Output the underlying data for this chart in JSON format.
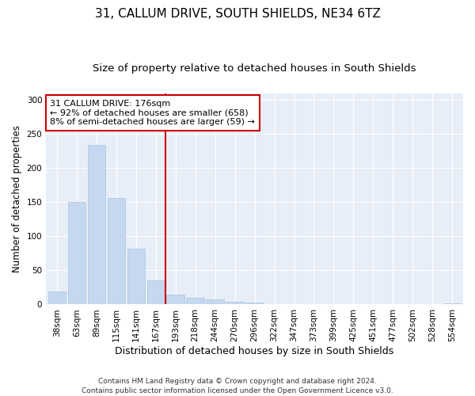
{
  "title": "31, CALLUM DRIVE, SOUTH SHIELDS, NE34 6TZ",
  "subtitle": "Size of property relative to detached houses in South Shields",
  "xlabel": "Distribution of detached houses by size in South Shields",
  "ylabel": "Number of detached properties",
  "categories": [
    "38sqm",
    "63sqm",
    "89sqm",
    "115sqm",
    "141sqm",
    "167sqm",
    "193sqm",
    "218sqm",
    "244sqm",
    "270sqm",
    "296sqm",
    "322sqm",
    "347sqm",
    "373sqm",
    "399sqm",
    "425sqm",
    "451sqm",
    "477sqm",
    "502sqm",
    "528sqm",
    "554sqm"
  ],
  "values": [
    19,
    151,
    234,
    156,
    82,
    35,
    14,
    10,
    8,
    4,
    3,
    1,
    0,
    0,
    0,
    0,
    1,
    0,
    0,
    0,
    2
  ],
  "bar_color": "#c5d8f0",
  "bar_edge_color": "#a8c4e0",
  "vline_x": 5.5,
  "vline_color": "#cc0000",
  "annotation_text": "31 CALLUM DRIVE: 176sqm\n← 92% of detached houses are smaller (658)\n8% of semi-detached houses are larger (59) →",
  "annotation_box_color": "#ffffff",
  "annotation_box_edge": "#cc0000",
  "ylim": [
    0,
    310
  ],
  "yticks": [
    0,
    50,
    100,
    150,
    200,
    250,
    300
  ],
  "bg_color": "#e8eef8",
  "title_fontsize": 11,
  "subtitle_fontsize": 9.5,
  "xlabel_fontsize": 9,
  "ylabel_fontsize": 8.5,
  "tick_fontsize": 7.5,
  "annot_fontsize": 8,
  "footer_fontsize": 6.5,
  "footer": "Contains HM Land Registry data © Crown copyright and database right 2024.\nContains public sector information licensed under the Open Government Licence v3.0."
}
